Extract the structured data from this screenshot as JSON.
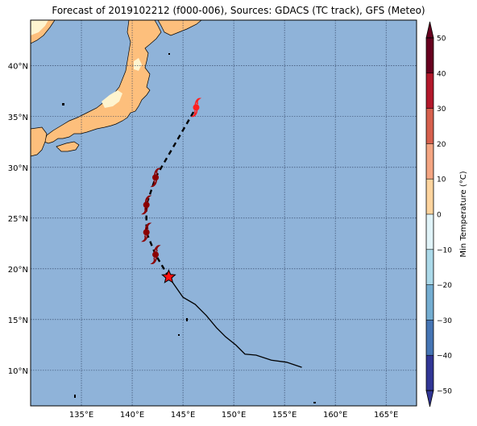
{
  "title": "Forecast of 2019102212 (f000-006), Sources: GDACS (TC track), GFS (Meteo)",
  "map": {
    "lon_range": [
      130,
      168
    ],
    "lat_range": [
      6.5,
      44.5
    ],
    "lon_ticks": [
      "135°E",
      "140°E",
      "145°E",
      "150°E",
      "155°E",
      "160°E",
      "165°E"
    ],
    "lat_ticks": [
      "10°N",
      "15°N",
      "20°N",
      "25°N",
      "30°N",
      "35°N",
      "40°N"
    ],
    "ocean_color": "#8fb3d9",
    "land_warm_color": "#fdbf7c",
    "land_cool_color": "#fef4cf",
    "grid": true
  },
  "track": {
    "past_track": [
      [
        156.7,
        10.3
      ],
      [
        155.2,
        10.8
      ],
      [
        153.7,
        11.0
      ],
      [
        152.2,
        11.5
      ],
      [
        151.1,
        11.6
      ],
      [
        150.2,
        12.5
      ],
      [
        149.2,
        13.3
      ],
      [
        148.3,
        14.2
      ],
      [
        147.3,
        15.4
      ],
      [
        146.2,
        16.5
      ],
      [
        145.0,
        17.2
      ],
      [
        143.6,
        19.2
      ]
    ],
    "current_position": [
      143.6,
      19.2
    ],
    "forecast_track": [
      [
        143.6,
        19.2
      ],
      [
        142.3,
        21.4
      ],
      [
        141.4,
        23.6
      ],
      [
        141.4,
        26.3
      ],
      [
        142.3,
        29.0
      ],
      [
        146.3,
        35.9
      ]
    ],
    "storm_icons": [
      {
        "lon": 142.3,
        "lat": 21.4,
        "color": "#8b0000"
      },
      {
        "lon": 141.4,
        "lat": 23.6,
        "color": "#8b0000"
      },
      {
        "lon": 141.4,
        "lat": 26.3,
        "color": "#8b0000"
      },
      {
        "lon": 142.3,
        "lat": 29.0,
        "color": "#8b0000"
      },
      {
        "lon": 146.3,
        "lat": 35.9,
        "color": "#ff2020"
      }
    ]
  },
  "colorbar": {
    "label": "Min Temperature (°C)",
    "ticks": [
      "50",
      "40",
      "30",
      "20",
      "10",
      "0",
      "−10",
      "−20",
      "−30",
      "−40",
      "−50"
    ],
    "colors": [
      "#67001f",
      "#b2182b",
      "#d6604d",
      "#f4a582",
      "#fdd49e",
      "#fff5d6",
      "#e0f3f8",
      "#abd9e9",
      "#74add1",
      "#4575b4",
      "#313695"
    ]
  }
}
